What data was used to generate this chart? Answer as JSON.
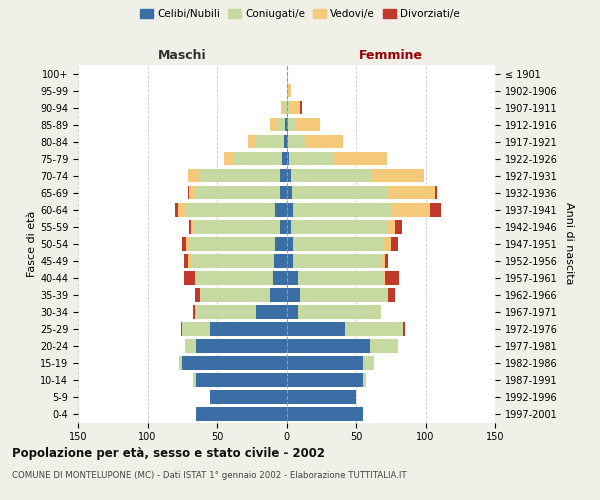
{
  "age_groups": [
    "0-4",
    "5-9",
    "10-14",
    "15-19",
    "20-24",
    "25-29",
    "30-34",
    "35-39",
    "40-44",
    "45-49",
    "50-54",
    "55-59",
    "60-64",
    "65-69",
    "70-74",
    "75-79",
    "80-84",
    "85-89",
    "90-94",
    "95-99",
    "100+"
  ],
  "birth_years": [
    "1997-2001",
    "1992-1996",
    "1987-1991",
    "1982-1986",
    "1977-1981",
    "1972-1976",
    "1967-1971",
    "1962-1966",
    "1957-1961",
    "1952-1956",
    "1947-1951",
    "1942-1946",
    "1937-1941",
    "1932-1936",
    "1927-1931",
    "1922-1926",
    "1917-1921",
    "1912-1916",
    "1907-1911",
    "1902-1906",
    "≤ 1901"
  ],
  "male": {
    "celibi": [
      65,
      55,
      65,
      75,
      65,
      55,
      22,
      12,
      10,
      9,
      8,
      5,
      8,
      5,
      5,
      3,
      2,
      1,
      0,
      0,
      0
    ],
    "coniugati": [
      0,
      0,
      2,
      2,
      8,
      20,
      43,
      50,
      55,
      60,
      62,
      62,
      65,
      60,
      58,
      35,
      20,
      6,
      2,
      0,
      0
    ],
    "vedovi": [
      0,
      0,
      0,
      0,
      0,
      0,
      1,
      0,
      1,
      2,
      2,
      2,
      5,
      5,
      8,
      7,
      6,
      5,
      2,
      0,
      0
    ],
    "divorziati": [
      0,
      0,
      0,
      0,
      0,
      1,
      1,
      4,
      8,
      3,
      3,
      1,
      2,
      1,
      0,
      0,
      0,
      0,
      0,
      0,
      0
    ]
  },
  "female": {
    "nubili": [
      55,
      50,
      55,
      55,
      60,
      42,
      8,
      10,
      8,
      5,
      5,
      3,
      5,
      4,
      3,
      2,
      1,
      1,
      0,
      0,
      0
    ],
    "coniugate": [
      0,
      0,
      2,
      8,
      20,
      42,
      60,
      62,
      62,
      63,
      65,
      70,
      70,
      68,
      58,
      32,
      12,
      5,
      2,
      0,
      0
    ],
    "vedove": [
      0,
      0,
      0,
      0,
      0,
      0,
      0,
      1,
      1,
      3,
      5,
      5,
      28,
      35,
      38,
      38,
      28,
      18,
      8,
      3,
      0
    ],
    "divorziate": [
      0,
      0,
      0,
      0,
      0,
      1,
      0,
      5,
      10,
      2,
      5,
      5,
      8,
      1,
      0,
      0,
      0,
      0,
      1,
      0,
      0
    ]
  },
  "colors": {
    "celibi": "#3A6EA5",
    "coniugati": "#C5D9A0",
    "vedovi": "#F5C97A",
    "divorziati": "#C0392B"
  },
  "xlim": 150,
  "title": "Popolazione per età, sesso e stato civile - 2002",
  "subtitle": "COMUNE DI MONTELUPONE (MC) - Dati ISTAT 1° gennaio 2002 - Elaborazione TUTTITALIA.IT",
  "ylabel_left": "Fasce di età",
  "ylabel_right": "Anni di nascita",
  "xlabel_maschi": "Maschi",
  "xlabel_femmine": "Femmine",
  "bg_color": "#f0f0e8",
  "plot_bg": "#ffffff",
  "legend_labels": [
    "Celibi/Nubili",
    "Coniugati/e",
    "Vedovi/e",
    "Divorziati/e"
  ]
}
